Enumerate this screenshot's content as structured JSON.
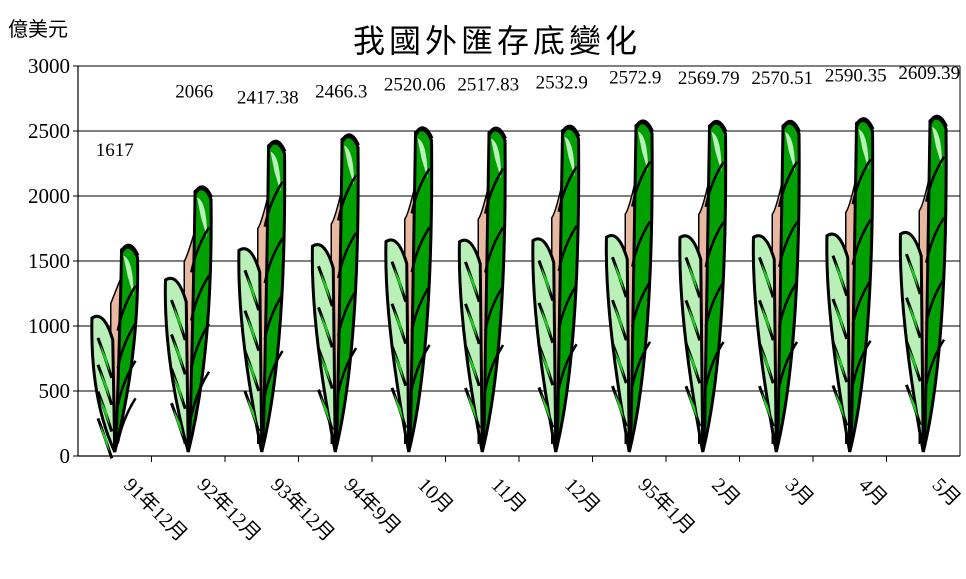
{
  "chart_data": {
    "type": "bar",
    "title": "我國外匯存底變化",
    "unit_label": "億美元",
    "ylim": [
      0,
      3000
    ],
    "yticks": [
      0,
      500,
      1000,
      1500,
      2000,
      2500,
      3000
    ],
    "grid": true,
    "categories": [
      "91年12月",
      "92年12月",
      "93年12月",
      "94年9月",
      "10月",
      "11月",
      "12月",
      "95年1月",
      "2月",
      "3月",
      "4月",
      "5月"
    ],
    "values": [
      1617,
      2066,
      2417.38,
      2466.3,
      2520.06,
      2517.83,
      2532.9,
      2572.9,
      2569.79,
      2570.51,
      2590.35,
      2609.39
    ],
    "value_labels": [
      "1617",
      "2066",
      "2417.38",
      "2466.3",
      "2520.06",
      "2517.83",
      "2532.9",
      "2572.9",
      "2569.79",
      "2570.51",
      "2590.35",
      "2609.39"
    ],
    "colors": {
      "leaf_dark": "#00a000",
      "leaf_mid": "#22cc22",
      "leaf_light": "#b8f0b8",
      "leaf_inner": "#e8b8a0",
      "outline": "#000000",
      "grid": "#000000"
    }
  }
}
